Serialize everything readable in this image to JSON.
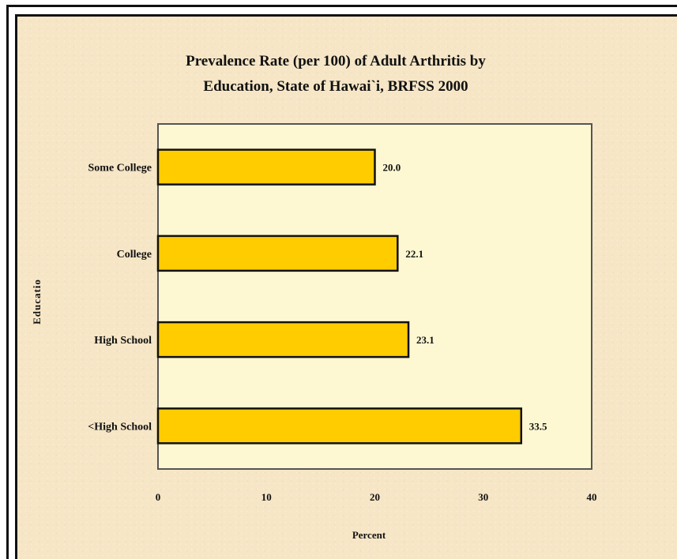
{
  "chart_data": {
    "type": "bar",
    "orientation": "horizontal",
    "title": "Prevalence Rate (per 100) of Adult Arthritis by Education, State of Hawai`i, BRFSS 2000",
    "xlabel": "Percent",
    "ylabel": "Educatio",
    "categories": [
      "Some College",
      "College",
      "High School",
      "<High School"
    ],
    "values": [
      20.0,
      22.1,
      23.1,
      33.5
    ],
    "value_labels": [
      "20.0",
      "22.1",
      "23.1",
      "33.5"
    ],
    "xlim": [
      0,
      40
    ],
    "xticks": [
      "0",
      "10",
      "20",
      "30",
      "40"
    ],
    "grid": false,
    "legend": "none",
    "colors": {
      "bar": "#ffcc00",
      "plot_background": "#fdf8d2",
      "page_background": "#f6e6c6"
    }
  }
}
